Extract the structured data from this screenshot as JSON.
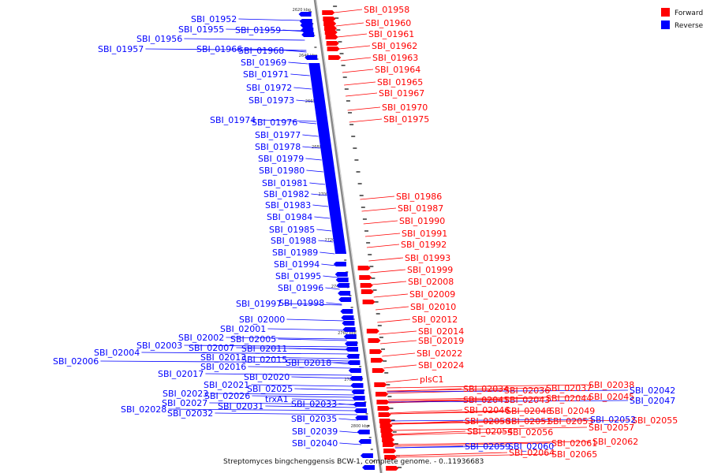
{
  "caption": "Streptomyces bingchenggensis BCW-1, complete genome. - 0..11936683",
  "legend": [
    {
      "label": "Forward",
      "color": "#ff0000"
    },
    {
      "label": "Reverse",
      "color": "#0000ff"
    }
  ],
  "colors": {
    "forward": "#ff0000",
    "reverse": "#0000ff",
    "backbone": "#888888"
  },
  "ticks": [
    "2620 kbp",
    "2640 kbp",
    "2660 kbp",
    "2680 kbp",
    "2700 kbp",
    "2720 kbp",
    "2740 kbp",
    "2760 kbp",
    "2780 kbp",
    "2800 kbp"
  ],
  "forward_labels": [
    "SBI_01958",
    "SBI_01960",
    "SBI_01961",
    "SBI_01962",
    "SBI_01963",
    "SBI_01964",
    "SBI_01965",
    "SBI_01967",
    "SBI_01970",
    "SBI_01975",
    "SBI_01986",
    "SBI_01987",
    "SBI_01990",
    "SBI_01991",
    "SBI_01992",
    "SBI_01993",
    "SBI_01999",
    "SBI_02008",
    "SBI_02009",
    "SBI_02010",
    "SBI_02012",
    "SBI_02014",
    "SBI_02019",
    "SBI_02022",
    "SBI_02024",
    "plsC1",
    "SBI_02034",
    "SBI_02036",
    "SBI_02037",
    "SBI_02038",
    "SBI_02041",
    "SBI_02043",
    "SBI_02044",
    "SBI_02045",
    "SBI_02046",
    "SBI_02048",
    "SBI_02049",
    "SBI_02050",
    "SBI_02051",
    "SBI_02053",
    "SBI_02054",
    "SBI_02056",
    "SBI_02057",
    "SBI_02055",
    "SBI_02064",
    "SBI_02065",
    "SBI_02061",
    "SBI_02062"
  ],
  "reverse_labels": [
    "SBI_01952",
    "SBI_01955",
    "SBI_01959",
    "SBI_01956",
    "SBI_01957",
    "SBI_01966",
    "SBI_01968",
    "SBI_01969",
    "SBI_01971",
    "SBI_01972",
    "SBI_01973",
    "SBI_01974",
    "SBI_01976",
    "SBI_01977",
    "SBI_01978",
    "SBI_01979",
    "SBI_01980",
    "SBI_01981",
    "SBI_01982",
    "SBI_01983",
    "SBI_01984",
    "SBI_01985",
    "SBI_01988",
    "SBI_01989",
    "SBI_01994",
    "SBI_01995",
    "SBI_01996",
    "SBI_01997",
    "SBI_01998",
    "SBI_02000",
    "SBI_02001",
    "SBI_02002",
    "SBI_02005",
    "SBI_02003",
    "SBI_02007",
    "SBI_02011",
    "SBI_02004",
    "SBI_02006",
    "SBI_02013",
    "SBI_02015",
    "SBI_02018",
    "SBI_02016",
    "SBI_02017",
    "SBI_02020",
    "SBI_02021",
    "SBI_02025",
    "SBI_02023",
    "SBI_02026",
    "trxA1",
    "SBI_02027",
    "SBI_02033",
    "SBI_02028",
    "SBI_02032",
    "SBI_02031",
    "SBI_02035",
    "SBI_02039",
    "SBI_02040",
    "SBI_02042",
    "SBI_02047",
    "SBI_02052",
    "SBI_02059",
    "SBI_02060"
  ]
}
